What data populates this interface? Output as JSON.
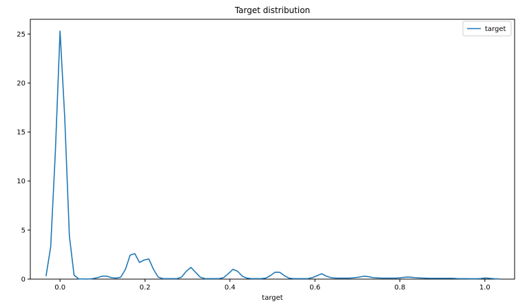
{
  "chart_data": {
    "type": "line",
    "title": "Target distribution",
    "xlabel": "target",
    "ylabel": "",
    "xlim": [
      -0.07,
      1.07
    ],
    "ylim": [
      0,
      26.5
    ],
    "grid": false,
    "legend_position": "top-right",
    "line_color": "#1f77b4",
    "x_ticks": [
      0.0,
      0.2,
      0.4,
      0.6,
      0.8,
      1.0
    ],
    "x_tick_labels": [
      "0.0",
      "0.2",
      "0.4",
      "0.6",
      "0.8",
      "1.0"
    ],
    "y_ticks": [
      0,
      5,
      10,
      15,
      20,
      25
    ],
    "y_tick_labels": [
      "0",
      "5",
      "10",
      "15",
      "20",
      "25"
    ],
    "series": [
      {
        "name": "target",
        "x": [
          -0.033,
          -0.022,
          -0.011,
          0.0,
          0.011,
          0.022,
          0.033,
          0.044,
          0.055,
          0.066,
          0.077,
          0.088,
          0.099,
          0.11,
          0.121,
          0.132,
          0.143,
          0.154,
          0.165,
          0.176,
          0.187,
          0.198,
          0.209,
          0.22,
          0.231,
          0.242,
          0.253,
          0.264,
          0.275,
          0.286,
          0.297,
          0.308,
          0.319,
          0.33,
          0.341,
          0.352,
          0.363,
          0.374,
          0.385,
          0.396,
          0.407,
          0.418,
          0.429,
          0.44,
          0.451,
          0.462,
          0.473,
          0.484,
          0.495,
          0.506,
          0.517,
          0.528,
          0.539,
          0.55,
          0.561,
          0.572,
          0.583,
          0.594,
          0.605,
          0.616,
          0.627,
          0.638,
          0.649,
          0.66,
          0.671,
          0.682,
          0.693,
          0.704,
          0.715,
          0.726,
          0.737,
          0.748,
          0.759,
          0.77,
          0.781,
          0.792,
          0.803,
          0.814,
          0.825,
          0.836,
          0.847,
          0.858,
          0.869,
          0.88,
          0.891,
          0.902,
          0.913,
          0.924,
          0.935,
          0.946,
          0.957,
          0.968,
          0.979,
          0.99,
          1.001,
          1.012,
          1.023,
          1.034
        ],
        "y": [
          0.3,
          3.3,
          13.0,
          25.3,
          16.5,
          4.4,
          0.4,
          0.03,
          0.01,
          0.01,
          0.05,
          0.15,
          0.3,
          0.3,
          0.15,
          0.1,
          0.2,
          1.0,
          2.45,
          2.6,
          1.7,
          1.95,
          2.05,
          1.0,
          0.2,
          0.05,
          0.05,
          0.05,
          0.05,
          0.2,
          0.8,
          1.2,
          0.7,
          0.2,
          0.05,
          0.05,
          0.05,
          0.05,
          0.15,
          0.55,
          1.0,
          0.8,
          0.3,
          0.1,
          0.05,
          0.05,
          0.05,
          0.1,
          0.35,
          0.7,
          0.7,
          0.35,
          0.1,
          0.05,
          0.05,
          0.05,
          0.05,
          0.15,
          0.35,
          0.55,
          0.3,
          0.15,
          0.1,
          0.1,
          0.1,
          0.1,
          0.15,
          0.2,
          0.3,
          0.25,
          0.15,
          0.12,
          0.1,
          0.1,
          0.1,
          0.1,
          0.15,
          0.2,
          0.2,
          0.15,
          0.12,
          0.1,
          0.08,
          0.08,
          0.08,
          0.08,
          0.08,
          0.08,
          0.06,
          0.05,
          0.05,
          0.04,
          0.04,
          0.06,
          0.12,
          0.08,
          0.04,
          0.02
        ]
      }
    ]
  }
}
